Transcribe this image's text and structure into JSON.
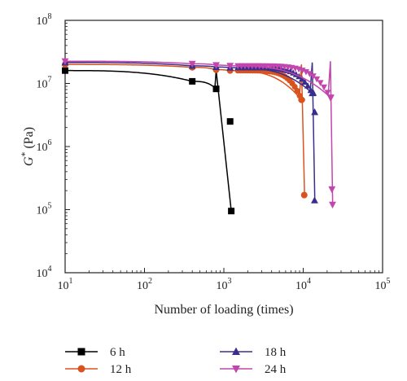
{
  "chart_data": {
    "type": "line",
    "x_scale": "log",
    "y_scale": "log",
    "xlabel": "Number of loading (times)",
    "ylabel_main": "G",
    "ylabel_sup": "*",
    "ylabel_unit": " (Pa)",
    "xlim": [
      10,
      100000
    ],
    "ylim": [
      10000,
      100000000
    ],
    "x_ticks": [
      {
        "base": "10",
        "exp": "1"
      },
      {
        "base": "10",
        "exp": "2"
      },
      {
        "base": "10",
        "exp": "3"
      },
      {
        "base": "10",
        "exp": "4"
      },
      {
        "base": "10",
        "exp": "5"
      }
    ],
    "y_ticks": [
      {
        "base": "10",
        "exp": "4"
      },
      {
        "base": "10",
        "exp": "5"
      },
      {
        "base": "10",
        "exp": "6"
      },
      {
        "base": "10",
        "exp": "7"
      },
      {
        "base": "10",
        "exp": "8"
      }
    ],
    "legend_position": "bottom",
    "series": [
      {
        "name": "6 h",
        "color": "#000000",
        "marker": "square",
        "curve_end_x": 1240,
        "markers": [
          [
            10,
            16000000
          ],
          [
            400,
            10800000
          ],
          [
            800,
            8200000
          ],
          [
            1200,
            2500000
          ],
          [
            1240,
            95000
          ]
        ]
      },
      {
        "name": "12 h",
        "color": "#d9531e",
        "marker": "circle",
        "curve_end_x": 10400,
        "markers_dense_range": [
          1500,
          9700
        ],
        "markers": [
          [
            10,
            20000000
          ],
          [
            400,
            18000000
          ],
          [
            800,
            16500000
          ],
          [
            1200,
            16000000
          ],
          [
            9500,
            5500000
          ],
          [
            10300,
            170000
          ]
        ]
      },
      {
        "name": "18 h",
        "color": "#3a2e8c",
        "marker": "triangle-up",
        "curve_end_x": 14000,
        "markers_dense_range": [
          1500,
          13500
        ],
        "markers": [
          [
            10,
            21500000
          ],
          [
            400,
            19000000
          ],
          [
            800,
            18200000
          ],
          [
            1200,
            17800000
          ],
          [
            13000,
            7000000
          ],
          [
            13900,
            140000
          ],
          [
            13950,
            3500000
          ]
        ]
      },
      {
        "name": "24 h",
        "color": "#c246ad",
        "marker": "triangle-down",
        "curve_end_x": 23500,
        "markers_dense_range": [
          1500,
          22500
        ],
        "markers": [
          [
            10,
            22500000
          ],
          [
            400,
            20500000
          ],
          [
            800,
            19500000
          ],
          [
            1200,
            19000000
          ],
          [
            22000,
            6000000
          ],
          [
            23000,
            210000
          ],
          [
            23400,
            120000
          ]
        ]
      }
    ]
  }
}
